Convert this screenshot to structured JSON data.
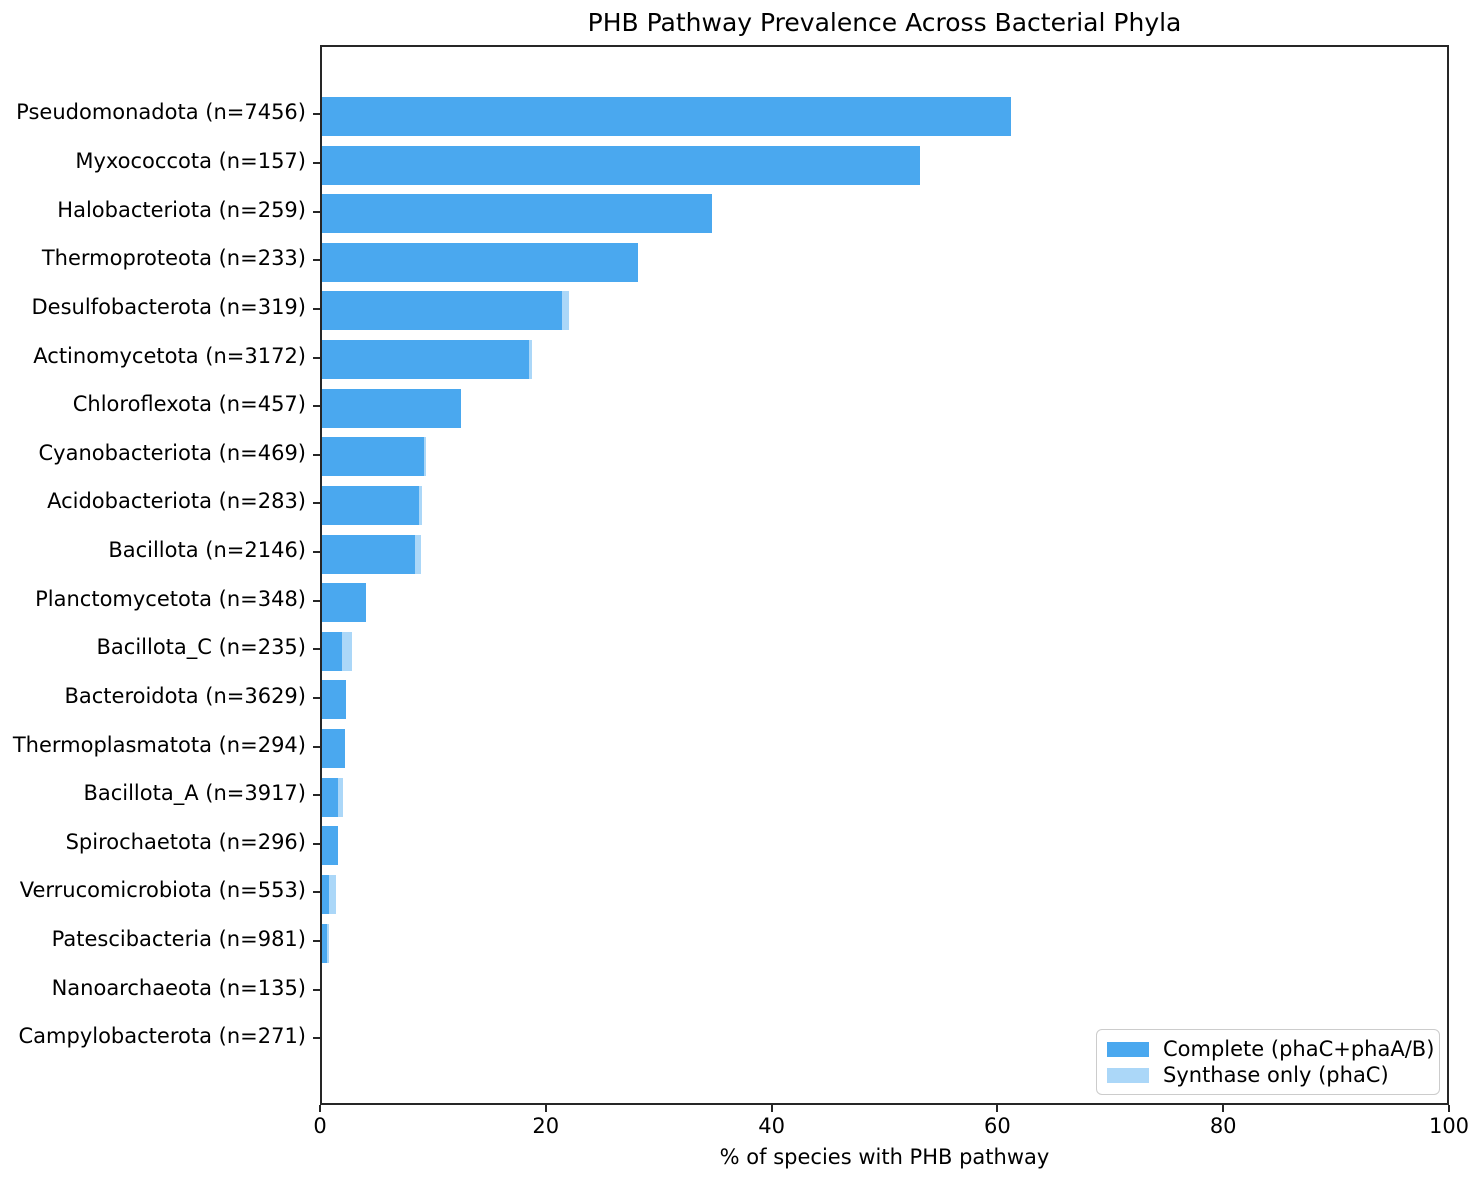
{
  "chart_data": {
    "type": "bar",
    "orientation": "horizontal",
    "stacked": true,
    "title": "PHB Pathway Prevalence Across Bacterial Phyla",
    "xlabel": "% of species with PHB pathway",
    "ylabel": "",
    "xlim": [
      0,
      100
    ],
    "xticks": [
      0,
      20,
      40,
      60,
      80,
      100
    ],
    "grid": false,
    "legend_position": "lower right",
    "categories": [
      "Pseudomonadota (n=7456)",
      "Myxococcota (n=157)",
      "Halobacteriota (n=259)",
      "Thermoproteota (n=233)",
      "Desulfobacterota (n=319)",
      "Actinomycetota (n=3172)",
      "Chloroflexota (n=457)",
      "Cyanobacteriota (n=469)",
      "Acidobacteriota (n=283)",
      "Bacillota (n=2146)",
      "Planctomycetota (n=348)",
      "Bacillota_C (n=235)",
      "Bacteroidota (n=3629)",
      "Thermoplasmatota (n=294)",
      "Bacillota_A (n=3917)",
      "Spirochaetota (n=296)",
      "Verrucomicrobiota (n=553)",
      "Patescibacteria (n=981)",
      "Nanoarchaeota (n=135)",
      "Campylobacterota (n=271)"
    ],
    "series": [
      {
        "name": "Complete (phaC+phaA/B)",
        "color": "#4AA8EF",
        "values": [
          61.0,
          53.0,
          34.5,
          28.0,
          21.3,
          18.3,
          12.3,
          9.0,
          8.6,
          8.2,
          3.9,
          1.8,
          2.1,
          2.0,
          1.4,
          1.4,
          0.6,
          0.4,
          0.0,
          0.0
        ]
      },
      {
        "name": "Synthase only (phaC)",
        "color": "#ABD7F8",
        "values": [
          0.0,
          0.0,
          0.0,
          0.0,
          0.6,
          0.3,
          0.0,
          0.2,
          0.3,
          0.6,
          0.0,
          0.9,
          0.0,
          0.0,
          0.5,
          0.0,
          0.6,
          0.2,
          0.0,
          0.0
        ]
      }
    ]
  }
}
